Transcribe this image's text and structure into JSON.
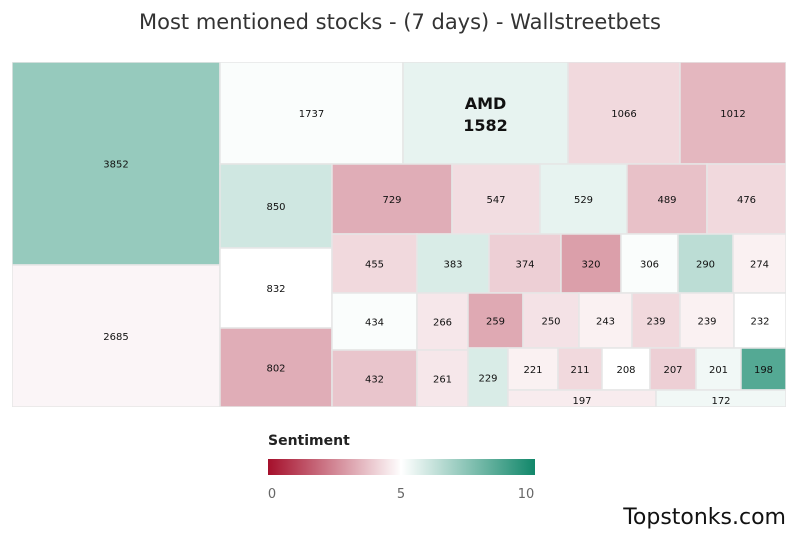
{
  "title": "Most mentioned stocks - (7 days) - Wallstreetbets",
  "brand": "Topstonks.com",
  "legend": {
    "title": "Sentiment",
    "ticks": [
      "0",
      "5",
      "10"
    ],
    "colors": {
      "low": "#a50f2b",
      "mid": "#ffffff",
      "high": "#11876a"
    }
  },
  "chart_data": {
    "type": "treemap",
    "title": "Most mentioned stocks - (7 days) - Wallstreetbets",
    "value_label": "mentions",
    "color_label": "Sentiment",
    "color_range": [
      0,
      10
    ],
    "tiles": [
      {
        "name": "",
        "value": 3852,
        "sentiment": 7.2
      },
      {
        "name": "",
        "value": 2685,
        "sentiment": 4.8
      },
      {
        "name": "",
        "value": 1737,
        "sentiment": 5.1
      },
      {
        "name": "",
        "value": 850,
        "sentiment": 6.0
      },
      {
        "name": "",
        "value": 832,
        "sentiment": 5.0
      },
      {
        "name": "",
        "value": 802,
        "sentiment": 3.3
      },
      {
        "name": "AMD",
        "value": 1582,
        "sentiment": 5.5
      },
      {
        "name": "",
        "value": 1066,
        "sentiment": 4.2
      },
      {
        "name": "",
        "value": 1012,
        "sentiment": 3.5
      },
      {
        "name": "",
        "value": 729,
        "sentiment": 3.3
      },
      {
        "name": "",
        "value": 547,
        "sentiment": 4.3
      },
      {
        "name": "",
        "value": 529,
        "sentiment": 5.5
      },
      {
        "name": "",
        "value": 489,
        "sentiment": 3.7
      },
      {
        "name": "",
        "value": 476,
        "sentiment": 4.2
      },
      {
        "name": "",
        "value": 455,
        "sentiment": 4.2
      },
      {
        "name": "",
        "value": 383,
        "sentiment": 5.8
      },
      {
        "name": "",
        "value": 374,
        "sentiment": 4.0
      },
      {
        "name": "",
        "value": 320,
        "sentiment": 3.0
      },
      {
        "name": "",
        "value": 306,
        "sentiment": 5.1
      },
      {
        "name": "",
        "value": 290,
        "sentiment": 6.4
      },
      {
        "name": "",
        "value": 274,
        "sentiment": 4.7
      },
      {
        "name": "",
        "value": 434,
        "sentiment": 5.1
      },
      {
        "name": "",
        "value": 432,
        "sentiment": 3.8
      },
      {
        "name": "",
        "value": 266,
        "sentiment": 4.5
      },
      {
        "name": "",
        "value": 261,
        "sentiment": 4.5
      },
      {
        "name": "",
        "value": 259,
        "sentiment": 3.2
      },
      {
        "name": "",
        "value": 250,
        "sentiment": 4.4
      },
      {
        "name": "",
        "value": 243,
        "sentiment": 4.7
      },
      {
        "name": "",
        "value": 239,
        "sentiment": 4.2
      },
      {
        "name": "",
        "value": 239,
        "sentiment": 4.7
      },
      {
        "name": "",
        "value": 232,
        "sentiment": 5.0
      },
      {
        "name": "",
        "value": 229,
        "sentiment": 5.8
      },
      {
        "name": "",
        "value": 221,
        "sentiment": 4.7
      },
      {
        "name": "",
        "value": 211,
        "sentiment": 4.2
      },
      {
        "name": "",
        "value": 208,
        "sentiment": 5.0
      },
      {
        "name": "",
        "value": 207,
        "sentiment": 4.0
      },
      {
        "name": "",
        "value": 201,
        "sentiment": 5.3
      },
      {
        "name": "",
        "value": 198,
        "sentiment": 8.6
      },
      {
        "name": "",
        "value": 197,
        "sentiment": 4.6
      },
      {
        "name": "",
        "value": 172,
        "sentiment": 5.3
      }
    ]
  }
}
